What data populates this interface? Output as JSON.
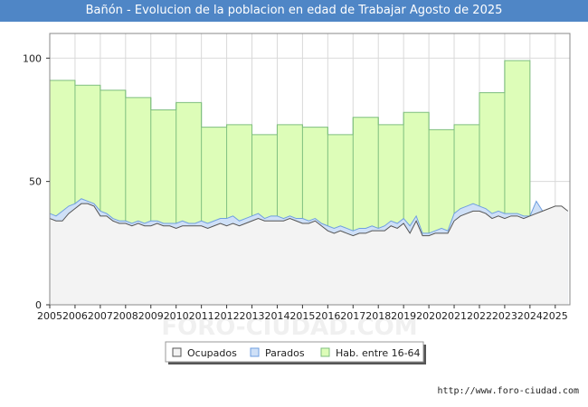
{
  "title": "Bañón - Evolucion de la poblacion en edad de Trabajar Agosto de 2025",
  "credit": "http://www.foro-ciudad.com",
  "watermark": "FORO-CIUDAD.COM",
  "colors": {
    "title_bg": "#4f86c6",
    "ocupados_fill": "#f3f3f3",
    "ocupados_line": "#555555",
    "parados_fill": "#cfe0f7",
    "parados_line": "#6f9fe0",
    "hab_fill": "#ddfdb8",
    "hab_line": "#7fbf7f",
    "grid": "#d9d9d9"
  },
  "chart_data": {
    "type": "area",
    "xlim": [
      2005,
      2025.58
    ],
    "ylim": [
      0,
      110
    ],
    "yticks": [
      0,
      50,
      100
    ],
    "xticks": [
      "2005",
      "2006",
      "2007",
      "2008",
      "2009",
      "2010",
      "2011",
      "2012",
      "2013",
      "2014",
      "2015",
      "2016",
      "2017",
      "2018",
      "2019",
      "2020",
      "2021",
      "2022",
      "2023",
      "2024",
      "2025"
    ],
    "grid": true,
    "legend_position": "bottom",
    "series": [
      {
        "name": "Hab. entre 16-64",
        "step": true,
        "x": [
          2005,
          2006,
          2007,
          2008,
          2009,
          2010,
          2011,
          2012,
          2013,
          2014,
          2015,
          2016,
          2017,
          2018,
          2019,
          2020,
          2021,
          2022,
          2023
        ],
        "values": [
          91,
          89,
          87,
          84,
          79,
          82,
          72,
          73,
          69,
          73,
          72,
          69,
          76,
          73,
          78,
          71,
          73,
          86,
          99
        ]
      },
      {
        "name": "Parados",
        "x": [
          2005,
          2005.25,
          2005.5,
          2005.75,
          2006,
          2006.25,
          2006.5,
          2006.75,
          2007,
          2007.25,
          2007.5,
          2007.75,
          2008,
          2008.25,
          2008.5,
          2008.75,
          2009,
          2009.25,
          2009.5,
          2009.75,
          2010,
          2010.25,
          2010.5,
          2010.75,
          2011,
          2011.25,
          2011.5,
          2011.75,
          2012,
          2012.25,
          2012.5,
          2012.75,
          2013,
          2013.25,
          2013.5,
          2013.75,
          2014,
          2014.25,
          2014.5,
          2014.75,
          2015,
          2015.25,
          2015.5,
          2015.75,
          2016,
          2016.25,
          2016.5,
          2016.75,
          2017,
          2017.25,
          2017.5,
          2017.75,
          2018,
          2018.25,
          2018.5,
          2018.75,
          2019,
          2019.25,
          2019.5,
          2019.75,
          2020,
          2020.25,
          2020.5,
          2020.75,
          2021,
          2021.25,
          2021.5,
          2021.75,
          2022,
          2022.25,
          2022.5,
          2022.75,
          2023,
          2023.25,
          2023.5,
          2023.75,
          2024,
          2024.25,
          2024.5,
          2024.75,
          2025,
          2025.25,
          2025.5
        ],
        "values": [
          37,
          36,
          38,
          40,
          41,
          43,
          42,
          41,
          38,
          37,
          35,
          34,
          34,
          33,
          34,
          33,
          34,
          34,
          33,
          33,
          33,
          34,
          33,
          33,
          34,
          33,
          34,
          35,
          35,
          36,
          34,
          35,
          36,
          37,
          35,
          36,
          36,
          35,
          36,
          35,
          35,
          34,
          35,
          33,
          32,
          31,
          32,
          31,
          30,
          31,
          31,
          32,
          31,
          32,
          34,
          33,
          35,
          32,
          36,
          29,
          29,
          30,
          31,
          30,
          37,
          39,
          40,
          41,
          40,
          39,
          37,
          38,
          37,
          37,
          37,
          36,
          36,
          42,
          38,
          38,
          39,
          38,
          38
        ]
      },
      {
        "name": "Ocupados",
        "x": [
          2005,
          2005.25,
          2005.5,
          2005.75,
          2006,
          2006.25,
          2006.5,
          2006.75,
          2007,
          2007.25,
          2007.5,
          2007.75,
          2008,
          2008.25,
          2008.5,
          2008.75,
          2009,
          2009.25,
          2009.5,
          2009.75,
          2010,
          2010.25,
          2010.5,
          2010.75,
          2011,
          2011.25,
          2011.5,
          2011.75,
          2012,
          2012.25,
          2012.5,
          2012.75,
          2013,
          2013.25,
          2013.5,
          2013.75,
          2014,
          2014.25,
          2014.5,
          2014.75,
          2015,
          2015.25,
          2015.5,
          2015.75,
          2016,
          2016.25,
          2016.5,
          2016.75,
          2017,
          2017.25,
          2017.5,
          2017.75,
          2018,
          2018.25,
          2018.5,
          2018.75,
          2019,
          2019.25,
          2019.5,
          2019.75,
          2020,
          2020.25,
          2020.5,
          2020.75,
          2021,
          2021.25,
          2021.5,
          2021.75,
          2022,
          2022.25,
          2022.5,
          2022.75,
          2023,
          2023.25,
          2023.5,
          2023.75,
          2024,
          2024.25,
          2024.5,
          2024.75,
          2025,
          2025.25,
          2025.5
        ],
        "values": [
          35,
          34,
          34,
          37,
          39,
          41,
          41,
          40,
          36,
          36,
          34,
          33,
          33,
          32,
          33,
          32,
          32,
          33,
          32,
          32,
          31,
          32,
          32,
          32,
          32,
          31,
          32,
          33,
          32,
          33,
          32,
          33,
          34,
          35,
          34,
          34,
          34,
          34,
          35,
          34,
          33,
          33,
          34,
          32,
          30,
          29,
          30,
          29,
          28,
          29,
          29,
          30,
          30,
          30,
          32,
          31,
          33,
          29,
          34,
          28,
          28,
          29,
          29,
          29,
          34,
          36,
          37,
          38,
          38,
          37,
          35,
          36,
          35,
          36,
          36,
          35,
          36,
          37,
          38,
          39,
          40,
          40,
          38
        ]
      }
    ]
  }
}
